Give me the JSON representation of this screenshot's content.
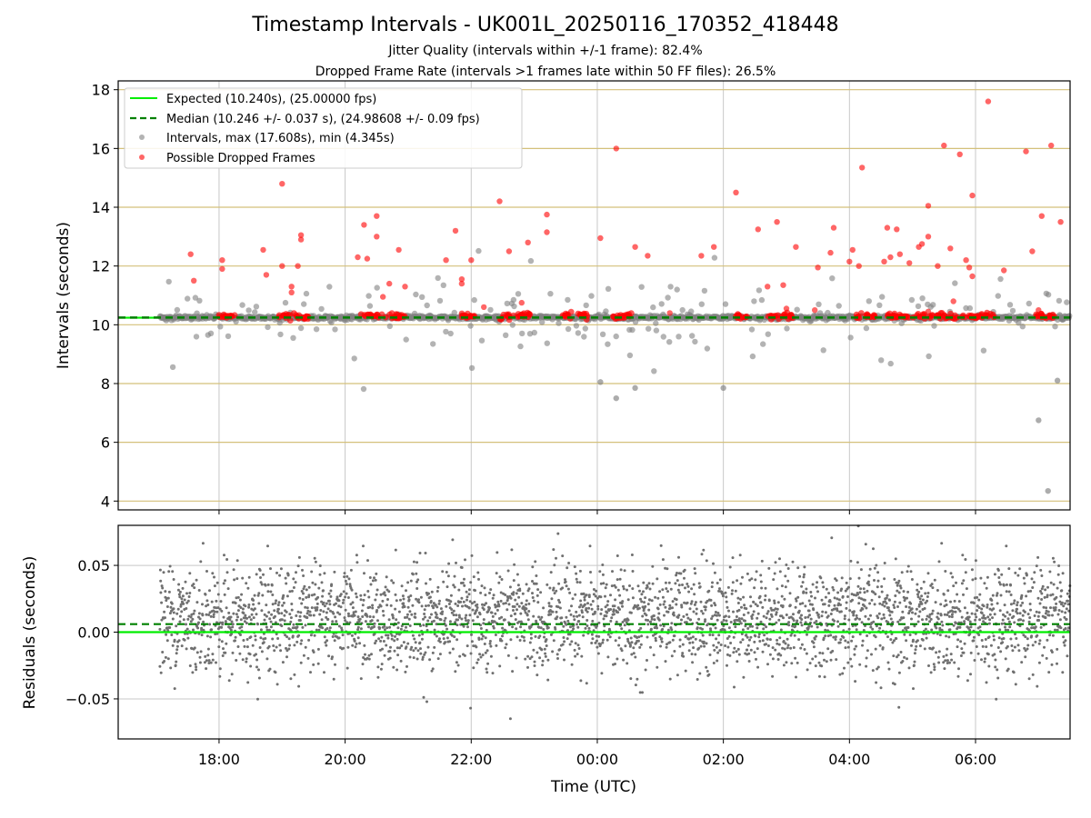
{
  "title": "Timestamp Intervals - UK001L_20250116_170352_418448",
  "subtitle_lines": [
    "Jitter Quality (intervals within +/-1 frame): 82.4%",
    "Dropped Frame Rate (intervals >1 frames late within 50 FF files): 26.5%"
  ],
  "colors": {
    "expected": "#00ee00",
    "median": "#008000",
    "intervals": "#808080",
    "dropped": "#ff0000",
    "hgrid_top": "#d4c07a",
    "grid": "#c8c8c8",
    "residuals": "#707070"
  },
  "chart_data": [
    {
      "type": "scatter",
      "panel": "top",
      "ylabel": "Intervals (seconds)",
      "xlim_hours": [
        16.4,
        31.5
      ],
      "ylim": [
        3.7,
        18.3
      ],
      "yticks": [
        4,
        6,
        8,
        10,
        12,
        14,
        16,
        18
      ],
      "grid": true,
      "legend_position": "upper left",
      "legend": [
        "Expected (10.240s), (25.00000 fps)",
        "Median (10.246 +/- 0.037 s), (24.98608 +/- 0.09 fps)",
        "Intervals, max (17.608s), min (4.345s)",
        "Possible Dropped Frames"
      ],
      "expected": 10.24,
      "median": 10.246,
      "data_span_hours": [
        17.06,
        31.5
      ],
      "max_interval": 17.608,
      "min_interval": 4.345,
      "dropped_frames": [
        [
          17.55,
          12.4
        ],
        [
          17.6,
          11.5
        ],
        [
          18.05,
          12.2
        ],
        [
          18.05,
          11.9
        ],
        [
          18.7,
          12.55
        ],
        [
          18.75,
          11.7
        ],
        [
          19.0,
          14.8
        ],
        [
          19.0,
          12.0
        ],
        [
          19.15,
          11.3
        ],
        [
          19.15,
          11.1
        ],
        [
          19.3,
          13.05
        ],
        [
          19.3,
          12.9
        ],
        [
          19.25,
          12.0
        ],
        [
          20.2,
          12.3
        ],
        [
          20.3,
          13.4
        ],
        [
          20.35,
          12.25
        ],
        [
          20.5,
          13.7
        ],
        [
          20.5,
          13.0
        ],
        [
          20.6,
          10.95
        ],
        [
          20.7,
          11.4
        ],
        [
          20.85,
          12.55
        ],
        [
          20.95,
          11.3
        ],
        [
          21.6,
          12.2
        ],
        [
          21.75,
          13.2
        ],
        [
          21.85,
          11.55
        ],
        [
          21.85,
          11.4
        ],
        [
          22.0,
          12.2
        ],
        [
          22.2,
          10.6
        ],
        [
          22.45,
          14.2
        ],
        [
          22.6,
          12.5
        ],
        [
          22.8,
          10.75
        ],
        [
          22.9,
          12.8
        ],
        [
          23.2,
          13.75
        ],
        [
          23.2,
          13.15
        ],
        [
          24.3,
          16.0
        ],
        [
          24.05,
          12.95
        ],
        [
          24.6,
          12.65
        ],
        [
          24.8,
          12.35
        ],
        [
          25.15,
          10.4
        ],
        [
          25.65,
          12.35
        ],
        [
          25.85,
          12.65
        ],
        [
          26.2,
          14.5
        ],
        [
          26.55,
          13.25
        ],
        [
          26.7,
          11.3
        ],
        [
          26.85,
          13.5
        ],
        [
          26.95,
          11.35
        ],
        [
          27.15,
          12.65
        ],
        [
          27.0,
          10.55
        ],
        [
          27.45,
          10.5
        ],
        [
          27.5,
          11.95
        ],
        [
          27.7,
          12.45
        ],
        [
          27.75,
          13.3
        ],
        [
          28.0,
          12.15
        ],
        [
          28.05,
          12.55
        ],
        [
          28.2,
          15.35
        ],
        [
          28.15,
          12.0
        ],
        [
          28.55,
          12.15
        ],
        [
          28.6,
          13.3
        ],
        [
          28.75,
          13.25
        ],
        [
          28.65,
          12.3
        ],
        [
          28.8,
          12.4
        ],
        [
          28.95,
          12.1
        ],
        [
          29.1,
          12.65
        ],
        [
          29.15,
          12.75
        ],
        [
          29.25,
          14.05
        ],
        [
          29.25,
          13.0
        ],
        [
          29.25,
          10.45
        ],
        [
          29.4,
          12.0
        ],
        [
          29.5,
          16.1
        ],
        [
          29.6,
          12.6
        ],
        [
          29.65,
          10.8
        ],
        [
          29.75,
          15.8
        ],
        [
          29.85,
          12.2
        ],
        [
          29.9,
          11.95
        ],
        [
          29.95,
          14.4
        ],
        [
          29.95,
          11.65
        ],
        [
          30.2,
          17.6
        ],
        [
          30.45,
          11.85
        ],
        [
          30.8,
          15.9
        ],
        [
          30.9,
          12.5
        ],
        [
          31.05,
          13.7
        ],
        [
          31.2,
          16.1
        ],
        [
          31.35,
          13.5
        ],
        [
          31.0,
          10.5
        ]
      ],
      "dropped_clusters": [
        [
          18.0,
          18.25
        ],
        [
          18.95,
          19.45
        ],
        [
          20.25,
          20.95
        ],
        [
          21.8,
          22.05
        ],
        [
          22.45,
          22.95
        ],
        [
          23.45,
          23.85
        ],
        [
          24.25,
          24.55
        ],
        [
          26.2,
          26.4
        ],
        [
          26.7,
          27.1
        ],
        [
          28.1,
          28.4
        ],
        [
          28.6,
          29.2
        ],
        [
          29.25,
          30.3
        ],
        [
          30.95,
          31.25
        ]
      ]
    },
    {
      "type": "scatter",
      "panel": "bottom",
      "xlabel": "Time (UTC)",
      "ylabel": "Residuals (seconds)",
      "xlim_hours": [
        16.4,
        31.5
      ],
      "ylim": [
        -0.08,
        0.08
      ],
      "yticks": [
        0.05,
        0.0,
        -0.05
      ],
      "ytick_labels": [
        "0.05",
        "0.00",
        "−0.05"
      ],
      "xtick_hours": [
        18,
        20,
        22,
        24,
        26,
        28,
        30
      ],
      "xtick_labels": [
        "18:00",
        "20:00",
        "22:00",
        "00:00",
        "02:00",
        "04:00",
        "06:00"
      ],
      "expected_residual": 0.0,
      "median_residual": 0.006,
      "residual_center": 0.01,
      "residual_spread_sd": 0.02,
      "grid": true
    }
  ]
}
